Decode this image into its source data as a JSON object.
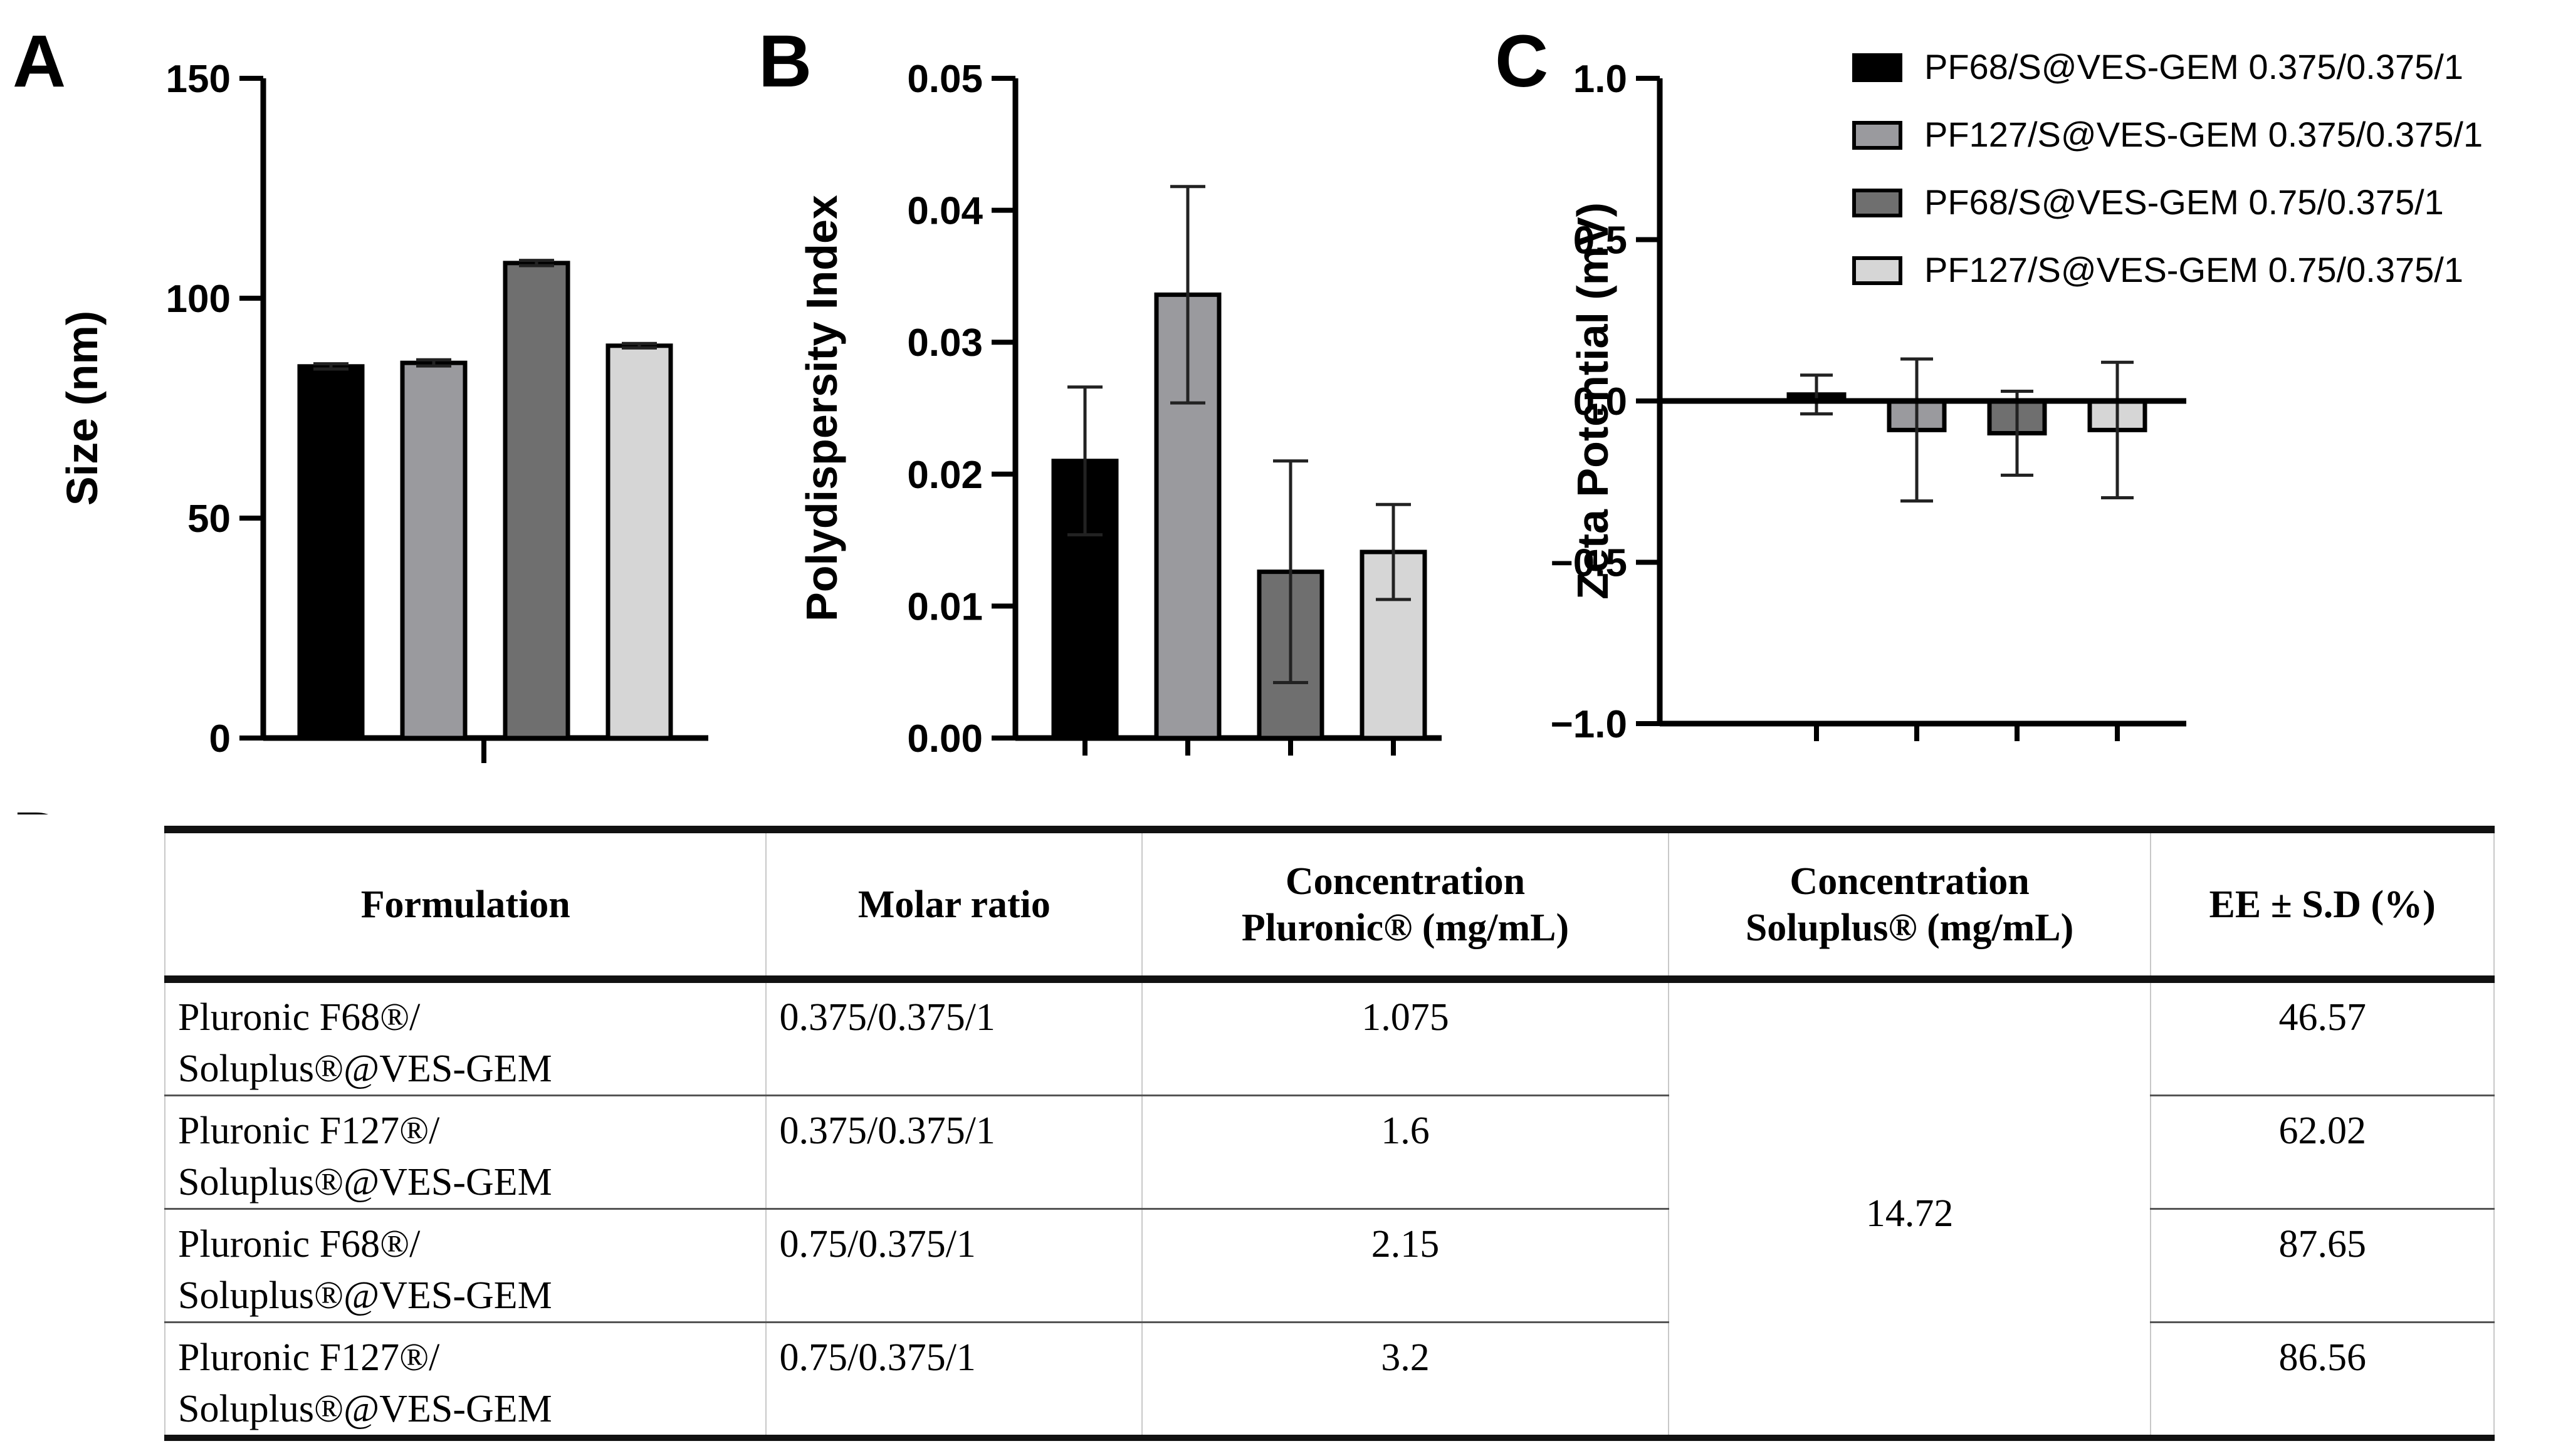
{
  "panels": {
    "a": "A",
    "b": "B",
    "c": "C",
    "d": "D"
  },
  "legend": [
    {
      "label": "PF68/S@VES-GEM 0.375/0.375/1",
      "color": "#000000"
    },
    {
      "label": "PF127/S@VES-GEM 0.375/0.375/1",
      "color": "#9a9a9e"
    },
    {
      "label": "PF68/S@VES-GEM 0.75/0.375/1",
      "color": "#6f6f6f"
    },
    {
      "label": "PF127/S@VES-GEM 0.75/0.375/1",
      "color": "#d6d6d6"
    }
  ],
  "chart_data": [
    {
      "type": "bar",
      "panel": "A",
      "title": "",
      "xlabel": "",
      "ylabel": "Size (nm)",
      "ylim": [
        0,
        150
      ],
      "yticks": [
        "0",
        "50",
        "100",
        "150"
      ],
      "categories": [
        "PF68/S@VES-GEM 0.375/0.375/1",
        "PF127/S@VES-GEM 0.375/0.375/1",
        "PF68/S@VES-GEM 0.75/0.375/1",
        "PF127/S@VES-GEM 0.75/0.375/1"
      ],
      "values": [
        84.5,
        85.3,
        108.0,
        89.2
      ],
      "errors": [
        0.6,
        0.7,
        0.6,
        0.5
      ]
    },
    {
      "type": "bar",
      "panel": "B",
      "title": "",
      "xlabel": "",
      "ylabel": "Polydispersity Index",
      "ylim": [
        0,
        0.05
      ],
      "yticks": [
        "0.00",
        "0.01",
        "0.02",
        "0.03",
        "0.04",
        "0.05"
      ],
      "categories": [
        "PF68/S@VES-GEM 0.375/0.375/1",
        "PF127/S@VES-GEM 0.375/0.375/1",
        "PF68/S@VES-GEM 0.75/0.375/1",
        "PF127/S@VES-GEM 0.75/0.375/1"
      ],
      "values": [
        0.021,
        0.0336,
        0.0126,
        0.0141
      ],
      "errors": [
        0.0056,
        0.0082,
        0.0084,
        0.0036
      ]
    },
    {
      "type": "bar",
      "panel": "C",
      "title": "",
      "xlabel": "",
      "ylabel": "Zeta Potential (mV)",
      "ylim": [
        -1.0,
        1.0
      ],
      "yticks": [
        "−1.0",
        "−0.5",
        "0.0",
        "0.5",
        "1.0"
      ],
      "categories": [
        "PF68/S@VES-GEM 0.375/0.375/1",
        "PF127/S@VES-GEM 0.375/0.375/1",
        "PF68/S@VES-GEM 0.75/0.375/1",
        "PF127/S@VES-GEM 0.75/0.375/1"
      ],
      "values": [
        0.02,
        -0.09,
        -0.1,
        -0.09
      ],
      "errors": [
        0.06,
        0.22,
        0.13,
        0.21
      ]
    }
  ],
  "table": {
    "headers": [
      [
        "Formulation"
      ],
      [
        "Molar ratio"
      ],
      [
        "Concentration",
        "Pluronic® (mg/mL)"
      ],
      [
        "Concentration",
        "Soluplus® (mg/mL)"
      ],
      [
        "EE ± S.D (%)"
      ]
    ],
    "rows": [
      {
        "formulation": [
          "Pluronic F68®/",
          "Soluplus®@VES-GEM"
        ],
        "molar_ratio": "0.375/0.375/1",
        "pluronic": "1.075",
        "ee": "46.57"
      },
      {
        "formulation": [
          "Pluronic F127®/",
          "Soluplus®@VES-GEM"
        ],
        "molar_ratio": "0.375/0.375/1",
        "pluronic": "1.6",
        "ee": "62.02"
      },
      {
        "formulation": [
          "Pluronic F68®/",
          "Soluplus®@VES-GEM"
        ],
        "molar_ratio": "0.75/0.375/1",
        "pluronic": "2.15",
        "ee": "87.65"
      },
      {
        "formulation": [
          "Pluronic F127®/",
          "Soluplus®@VES-GEM"
        ],
        "molar_ratio": "0.75/0.375/1",
        "pluronic": "3.2",
        "ee": "86.56"
      }
    ],
    "soluplus_merged": "14.72"
  }
}
